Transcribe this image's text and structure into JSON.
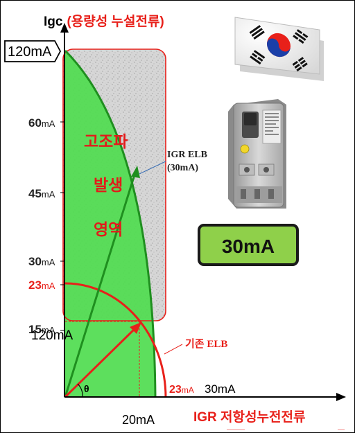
{
  "axes": {
    "y_title_prefix": "Igc",
    "y_title_korean": "(용량성 누설전류)",
    "x_title": "IGR 저항성누전전류"
  },
  "y_ticks": {
    "top": "120mA",
    "t60": {
      "num": "60",
      "unit": "mA"
    },
    "t45": {
      "num": "45",
      "unit": "mA"
    },
    "t30": {
      "num": "30",
      "unit": "mA"
    },
    "t23": {
      "num": "23",
      "unit": "mA"
    },
    "t15": {
      "num": "15",
      "unit": "mA"
    },
    "t15_overlay": "120mA"
  },
  "x_ticks": {
    "t23": {
      "num": "23",
      "unit": "mA"
    },
    "t30": "30mA",
    "t20": "20mA"
  },
  "region": {
    "line1": "고조파",
    "line2": "발생",
    "line3": "영역"
  },
  "igr_label": {
    "line1": "IGR ELB",
    "line2": "(30mA)"
  },
  "legacy_label": "기존 ELB",
  "theta": "θ",
  "badge": "30mA",
  "colors": {
    "red": "#e8201a",
    "green_fill": "#4fdc4f",
    "green_line": "#1f8f1f",
    "badge_fill": "#8fd04a",
    "region_text": "#e31a1a"
  }
}
